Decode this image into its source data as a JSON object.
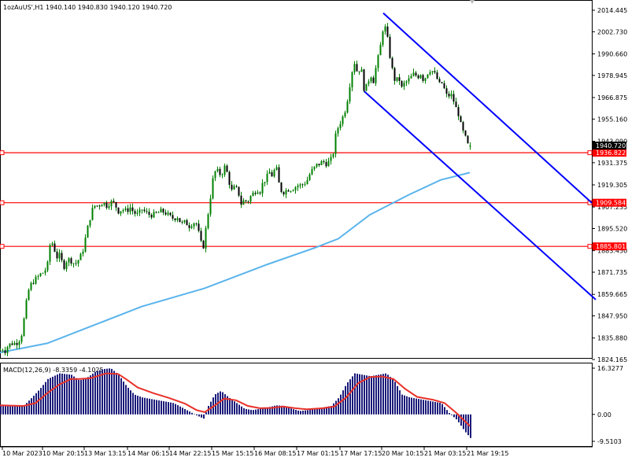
{
  "header": {
    "symbol_line": "1ozAuUS',H1  1940.140 1940.830 1940.120 1940.720",
    "macd_line": "MACD(12,26,9) -8.3359 -4.1025"
  },
  "colors": {
    "background": "#ffffff",
    "candle": "#008000",
    "channel": "#0000ff",
    "level_line": "#ff0000",
    "ma_line": "#5ab4ec",
    "histogram": "#1a1a7a",
    "signal_line": "#e8322a",
    "price_tag": "#000000"
  },
  "price_axis": {
    "labels": [
      "2014.445",
      "2002.730",
      "1990.660",
      "1978.945",
      "1966.875",
      "1955.160",
      "1943.090",
      "1931.375",
      "1919.305",
      "1907.235",
      "1895.520",
      "1883.450",
      "1871.735",
      "1859.665",
      "1847.950",
      "1835.880",
      "1824.165"
    ],
    "current_price_tag": "1940.720"
  },
  "levels": [
    {
      "label": "1936.822",
      "value": 1936.822
    },
    {
      "label": "1909.584",
      "value": 1909.584
    },
    {
      "label": "1885.801",
      "value": 1885.801
    }
  ],
  "macd_axis": {
    "labels": [
      "16.3277",
      "0.00",
      "-9.5103"
    ]
  },
  "time_axis": {
    "labels": [
      "10 Mar 2023",
      "10 Mar 20:15",
      "13 Mar 13:15",
      "14 Mar 06:15",
      "14 Mar 22:15",
      "15 Mar 15:15",
      "16 Mar 08:15",
      "17 Mar 01:15",
      "17 Mar 17:15",
      "20 Mar 10:15",
      "21 Mar 03:15",
      "21 Mar 19:15"
    ]
  },
  "chart_data": {
    "type": "candlestick",
    "instrument": "1ozAuUS'",
    "timeframe": "H1",
    "last_bar": {
      "open": 1940.14,
      "high": 1940.83,
      "low": 1940.12,
      "close": 1940.72
    },
    "close_path": [
      [
        0,
        1829
      ],
      [
        3,
        1830
      ],
      [
        6,
        1829
      ],
      [
        10,
        1832
      ],
      [
        15,
        1833
      ],
      [
        20,
        1833
      ],
      [
        24,
        1835
      ],
      [
        27,
        1838
      ],
      [
        30,
        1846
      ],
      [
        33,
        1855
      ],
      [
        36,
        1862
      ],
      [
        40,
        1866
      ],
      [
        45,
        1868
      ],
      [
        52,
        1871
      ],
      [
        56,
        1872
      ],
      [
        60,
        1876
      ],
      [
        64,
        1890
      ],
      [
        68,
        1885
      ],
      [
        72,
        1880
      ],
      [
        76,
        1881
      ],
      [
        80,
        1874
      ],
      [
        85,
        1879
      ],
      [
        90,
        1878
      ],
      [
        95,
        1876
      ],
      [
        100,
        1879
      ],
      [
        104,
        1882
      ],
      [
        108,
        1890
      ],
      [
        112,
        1898
      ],
      [
        116,
        1905
      ],
      [
        120,
        1908
      ],
      [
        125,
        1908
      ],
      [
        130,
        1910
      ],
      [
        135,
        1908
      ],
      [
        140,
        1910
      ],
      [
        145,
        1909
      ],
      [
        150,
        1905
      ],
      [
        155,
        1906
      ],
      [
        160,
        1905
      ],
      [
        165,
        1907
      ],
      [
        170,
        1904
      ],
      [
        175,
        1903
      ],
      [
        180,
        1906
      ],
      [
        185,
        1904
      ],
      [
        190,
        1903
      ],
      [
        195,
        1903
      ],
      [
        200,
        1904
      ],
      [
        205,
        1905
      ],
      [
        210,
        1904
      ],
      [
        215,
        1902
      ],
      [
        220,
        1901
      ],
      [
        225,
        1902
      ],
      [
        230,
        1898
      ],
      [
        235,
        1899
      ],
      [
        240,
        1897
      ],
      [
        245,
        1899
      ],
      [
        250,
        1898
      ],
      [
        254,
        1888
      ],
      [
        258,
        1886
      ],
      [
        262,
        1898
      ],
      [
        266,
        1910
      ],
      [
        270,
        1922
      ],
      [
        274,
        1928
      ],
      [
        278,
        1925
      ],
      [
        282,
        1926
      ],
      [
        286,
        1930
      ],
      [
        290,
        1922
      ],
      [
        294,
        1916
      ],
      [
        298,
        1918
      ],
      [
        302,
        1916
      ],
      [
        306,
        1909
      ],
      [
        310,
        1911
      ],
      [
        314,
        1910
      ],
      [
        318,
        1913
      ],
      [
        322,
        1915
      ],
      [
        326,
        1917
      ],
      [
        330,
        1916
      ],
      [
        334,
        1921
      ],
      [
        338,
        1923
      ],
      [
        342,
        1926
      ],
      [
        346,
        1924
      ],
      [
        350,
        1930
      ],
      [
        354,
        1920
      ],
      [
        358,
        1915
      ],
      [
        362,
        1916
      ],
      [
        366,
        1917
      ],
      [
        370,
        1917
      ],
      [
        374,
        1918
      ],
      [
        378,
        1919
      ],
      [
        382,
        1919
      ],
      [
        386,
        1920
      ],
      [
        390,
        1922
      ],
      [
        394,
        1926
      ],
      [
        398,
        1928
      ],
      [
        402,
        1930
      ],
      [
        406,
        1931
      ],
      [
        410,
        1932
      ],
      [
        414,
        1931
      ],
      [
        418,
        1932
      ],
      [
        422,
        1934
      ],
      [
        426,
        1946
      ],
      [
        430,
        1952
      ],
      [
        434,
        1955
      ],
      [
        438,
        1960
      ],
      [
        442,
        1968
      ],
      [
        446,
        1980
      ],
      [
        450,
        1986
      ],
      [
        454,
        1980
      ],
      [
        458,
        1984
      ],
      [
        462,
        1972
      ],
      [
        466,
        1973
      ],
      [
        470,
        1980
      ],
      [
        474,
        1976
      ],
      [
        478,
        1985
      ],
      [
        482,
        1992
      ],
      [
        486,
        2004
      ],
      [
        490,
        2005
      ],
      [
        494,
        1992
      ],
      [
        498,
        1982
      ],
      [
        502,
        1975
      ],
      [
        506,
        1978
      ],
      [
        510,
        1972
      ],
      [
        514,
        1975
      ],
      [
        518,
        1976
      ],
      [
        522,
        1978
      ],
      [
        526,
        1980
      ],
      [
        530,
        1978
      ],
      [
        534,
        1980
      ],
      [
        538,
        1976
      ],
      [
        542,
        1980
      ],
      [
        546,
        1982
      ],
      [
        550,
        1981
      ],
      [
        554,
        1978
      ],
      [
        558,
        1974
      ],
      [
        562,
        1975
      ],
      [
        566,
        1968
      ],
      [
        570,
        1968
      ],
      [
        574,
        1968
      ],
      [
        578,
        1962
      ],
      [
        582,
        1958
      ],
      [
        586,
        1950
      ],
      [
        590,
        1946
      ],
      [
        594,
        1941
      ],
      [
        597,
        1940.72
      ]
    ],
    "moving_average_path": [
      [
        0,
        1828
      ],
      [
        60,
        1833
      ],
      [
        120,
        1843
      ],
      [
        180,
        1853
      ],
      [
        260,
        1863
      ],
      [
        340,
        1876
      ],
      [
        400,
        1885
      ],
      [
        430,
        1890
      ],
      [
        470,
        1903
      ],
      [
        520,
        1914
      ],
      [
        560,
        1922
      ],
      [
        597,
        1926
      ]
    ],
    "channel_upper": {
      "from": [
        487,
        2012.9
      ],
      "to": [
        752,
        1909.5
      ]
    },
    "channel_lower": {
      "from": [
        463,
        1970.2
      ],
      "to": [
        757,
        1856.8
      ]
    },
    "macd": {
      "histogram_path": [
        [
          0,
          3.5
        ],
        [
          20,
          3.0
        ],
        [
          30,
          3.2
        ],
        [
          40,
          6
        ],
        [
          50,
          9
        ],
        [
          60,
          12.5
        ],
        [
          75,
          14.5
        ],
        [
          90,
          14
        ],
        [
          100,
          12
        ],
        [
          110,
          13
        ],
        [
          120,
          15
        ],
        [
          130,
          16
        ],
        [
          140,
          16.3
        ],
        [
          150,
          14
        ],
        [
          160,
          10
        ],
        [
          170,
          7
        ],
        [
          180,
          6
        ],
        [
          200,
          5
        ],
        [
          220,
          4
        ],
        [
          240,
          1
        ],
        [
          250,
          -0.5
        ],
        [
          258,
          -1.5
        ],
        [
          264,
          3
        ],
        [
          272,
          7
        ],
        [
          280,
          8.3
        ],
        [
          290,
          6
        ],
        [
          300,
          4
        ],
        [
          310,
          2
        ],
        [
          320,
          1.5
        ],
        [
          330,
          2
        ],
        [
          340,
          2.5
        ],
        [
          350,
          3.2
        ],
        [
          360,
          3
        ],
        [
          370,
          2
        ],
        [
          380,
          1.2
        ],
        [
          390,
          1.5
        ],
        [
          400,
          2
        ],
        [
          410,
          2.5
        ],
        [
          420,
          3
        ],
        [
          430,
          6
        ],
        [
          440,
          11
        ],
        [
          450,
          14.5
        ],
        [
          460,
          14
        ],
        [
          470,
          13.5
        ],
        [
          480,
          14
        ],
        [
          490,
          14.5
        ],
        [
          500,
          12
        ],
        [
          510,
          7
        ],
        [
          520,
          6
        ],
        [
          530,
          5.5
        ],
        [
          540,
          5
        ],
        [
          550,
          4.5
        ],
        [
          560,
          4
        ],
        [
          570,
          0.5
        ],
        [
          580,
          -2
        ],
        [
          590,
          -6
        ],
        [
          597,
          -8.3359
        ]
      ],
      "signal_path": [
        [
          0,
          3.2
        ],
        [
          30,
          3
        ],
        [
          45,
          4
        ],
        [
          60,
          7.5
        ],
        [
          75,
          10.5
        ],
        [
          90,
          12.5
        ],
        [
          100,
          12.5
        ],
        [
          115,
          12.8
        ],
        [
          135,
          14.5
        ],
        [
          150,
          14.3
        ],
        [
          160,
          12.5
        ],
        [
          175,
          9.5
        ],
        [
          195,
          7.5
        ],
        [
          215,
          5.8
        ],
        [
          235,
          3.8
        ],
        [
          250,
          1.5
        ],
        [
          260,
          0.8
        ],
        [
          272,
          3
        ],
        [
          285,
          5.6
        ],
        [
          300,
          5
        ],
        [
          315,
          3
        ],
        [
          330,
          2.2
        ],
        [
          345,
          2.3
        ],
        [
          360,
          2.8
        ],
        [
          375,
          2.2
        ],
        [
          390,
          1.8
        ],
        [
          410,
          2.2
        ],
        [
          425,
          2.8
        ],
        [
          440,
          6
        ],
        [
          455,
          11
        ],
        [
          470,
          13.2
        ],
        [
          485,
          13.4
        ],
        [
          500,
          12.5
        ],
        [
          515,
          9
        ],
        [
          530,
          6.2
        ],
        [
          550,
          5.2
        ],
        [
          565,
          4
        ],
        [
          580,
          0.5
        ],
        [
          597,
          -4.1025
        ]
      ]
    }
  }
}
